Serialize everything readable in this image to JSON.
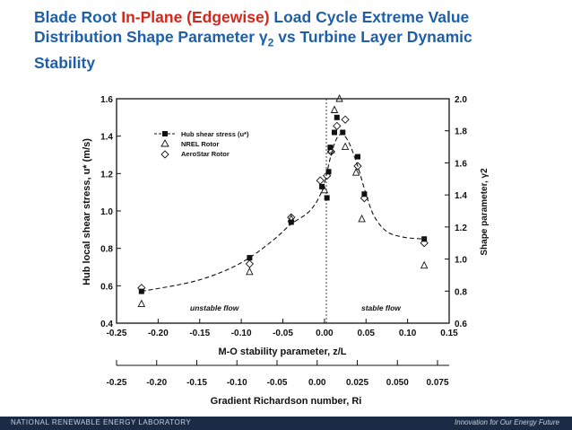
{
  "slide": {
    "title_part1": "Blade Root ",
    "title_red": "In-Plane (Edgewise)",
    "title_part2": " Load Cycle Extreme Value Distribution Shape Parameter ",
    "title_gamma": "γ",
    "title_sub": "2",
    "title_part3": " vs Turbine Layer Dynamic Stability",
    "footer_left": "NATIONAL RENEWABLE ENERGY LABORATORY",
    "footer_right": "Innovation for Our Energy Future"
  },
  "colors": {
    "title": "#1f5fa8",
    "title_highlight": "#d8261c",
    "footer_bg": "#1c2b45"
  },
  "chart_data": {
    "type": "scatter",
    "xlabel": "M-O stability parameter, z/L",
    "ylabel_left": "Hub local shear stress, u* (m/s)",
    "ylabel_right": "Shape parameter, γ2",
    "xlim": [
      -0.25,
      0.15
    ],
    "ylim_left": [
      0.4,
      1.6
    ],
    "ylim_right": [
      0.6,
      2.0
    ],
    "x_ticks": [
      -0.25,
      -0.2,
      -0.15,
      -0.1,
      -0.05,
      0.0,
      0.05,
      0.1,
      0.15
    ],
    "x_tick_labels": [
      "-0.25",
      "-0.20",
      "-0.15",
      "-0.10",
      "-0.05",
      "0.00",
      "0.05",
      "0.10",
      "0.15"
    ],
    "y_left_ticks": [
      0.4,
      0.6,
      0.8,
      1.0,
      1.2,
      1.4,
      1.6
    ],
    "y_left_tick_labels": [
      "0.4",
      "0.6",
      "0.8",
      "1.0",
      "1.2",
      "1.4",
      "1.6"
    ],
    "y_right_ticks": [
      0.6,
      0.8,
      1.0,
      1.2,
      1.4,
      1.6,
      1.8,
      2.0
    ],
    "y_right_tick_labels": [
      "0.6",
      "0.8",
      "1.0",
      "1.2",
      "1.4",
      "1.6",
      "1.8",
      "2.0"
    ],
    "legend": [
      "Hub shear stress (u*)",
      "NREL Rotor",
      "AeroStar Rotor"
    ],
    "annotations": [
      "unstable flow",
      "stable flow"
    ],
    "secondary_axis": {
      "label": "Gradient Richardson number, Ri",
      "ticks": [
        -0.25,
        -0.2,
        -0.15,
        -0.1,
        -0.05,
        0.0,
        0.025,
        0.05,
        0.075
      ],
      "tick_labels": [
        "-0.25",
        "-0.20",
        "-0.15",
        "-0.10",
        "-0.05",
        "0.00",
        "0.025",
        "0.050",
        "0.075"
      ]
    },
    "series": [
      {
        "name": "Hub shear stress (u*)",
        "marker": "filled-square",
        "axis": "left",
        "points": [
          [
            -0.22,
            0.57
          ],
          [
            -0.09,
            0.75
          ],
          [
            -0.04,
            0.94
          ],
          [
            -0.003,
            1.13
          ],
          [
            0.003,
            1.07
          ],
          [
            0.005,
            1.21
          ],
          [
            0.007,
            1.34
          ],
          [
            0.012,
            1.42
          ],
          [
            0.015,
            1.5
          ],
          [
            0.022,
            1.42
          ],
          [
            0.04,
            1.29
          ],
          [
            0.048,
            1.09
          ],
          [
            0.12,
            0.85
          ]
        ]
      },
      {
        "name": "NREL Rotor",
        "marker": "triangle",
        "axis": "right",
        "points": [
          [
            -0.22,
            0.72
          ],
          [
            -0.09,
            0.92
          ],
          [
            -0.04,
            1.25
          ],
          [
            0.0,
            1.43
          ],
          [
            0.008,
            1.68
          ],
          [
            0.012,
            1.93
          ],
          [
            0.018,
            2.0
          ],
          [
            0.025,
            1.7
          ],
          [
            0.038,
            1.54
          ],
          [
            0.045,
            1.25
          ],
          [
            0.12,
            0.96
          ]
        ]
      },
      {
        "name": "AeroStar Rotor",
        "marker": "diamond",
        "axis": "right",
        "points": [
          [
            -0.22,
            0.82
          ],
          [
            -0.09,
            0.97
          ],
          [
            -0.04,
            1.26
          ],
          [
            -0.005,
            1.49
          ],
          [
            0.003,
            1.52
          ],
          [
            0.008,
            1.67
          ],
          [
            0.015,
            1.83
          ],
          [
            0.025,
            1.87
          ],
          [
            0.04,
            1.58
          ],
          [
            0.048,
            1.38
          ],
          [
            0.12,
            1.1
          ]
        ]
      }
    ],
    "fit_curve": {
      "name": "Hub shear stress fit",
      "style": "dashed",
      "points": [
        [
          -0.22,
          0.57
        ],
        [
          -0.16,
          0.62
        ],
        [
          -0.12,
          0.68
        ],
        [
          -0.09,
          0.75
        ],
        [
          -0.06,
          0.85
        ],
        [
          -0.04,
          0.93
        ],
        [
          -0.02,
          0.99
        ],
        [
          -0.008,
          1.06
        ],
        [
          0.0,
          1.15
        ],
        [
          0.008,
          1.3
        ],
        [
          0.015,
          1.39
        ],
        [
          0.022,
          1.41
        ],
        [
          0.03,
          1.36
        ],
        [
          0.04,
          1.24
        ],
        [
          0.05,
          1.09
        ],
        [
          0.06,
          0.97
        ],
        [
          0.075,
          0.89
        ],
        [
          0.095,
          0.86
        ],
        [
          0.12,
          0.85
        ]
      ]
    }
  }
}
